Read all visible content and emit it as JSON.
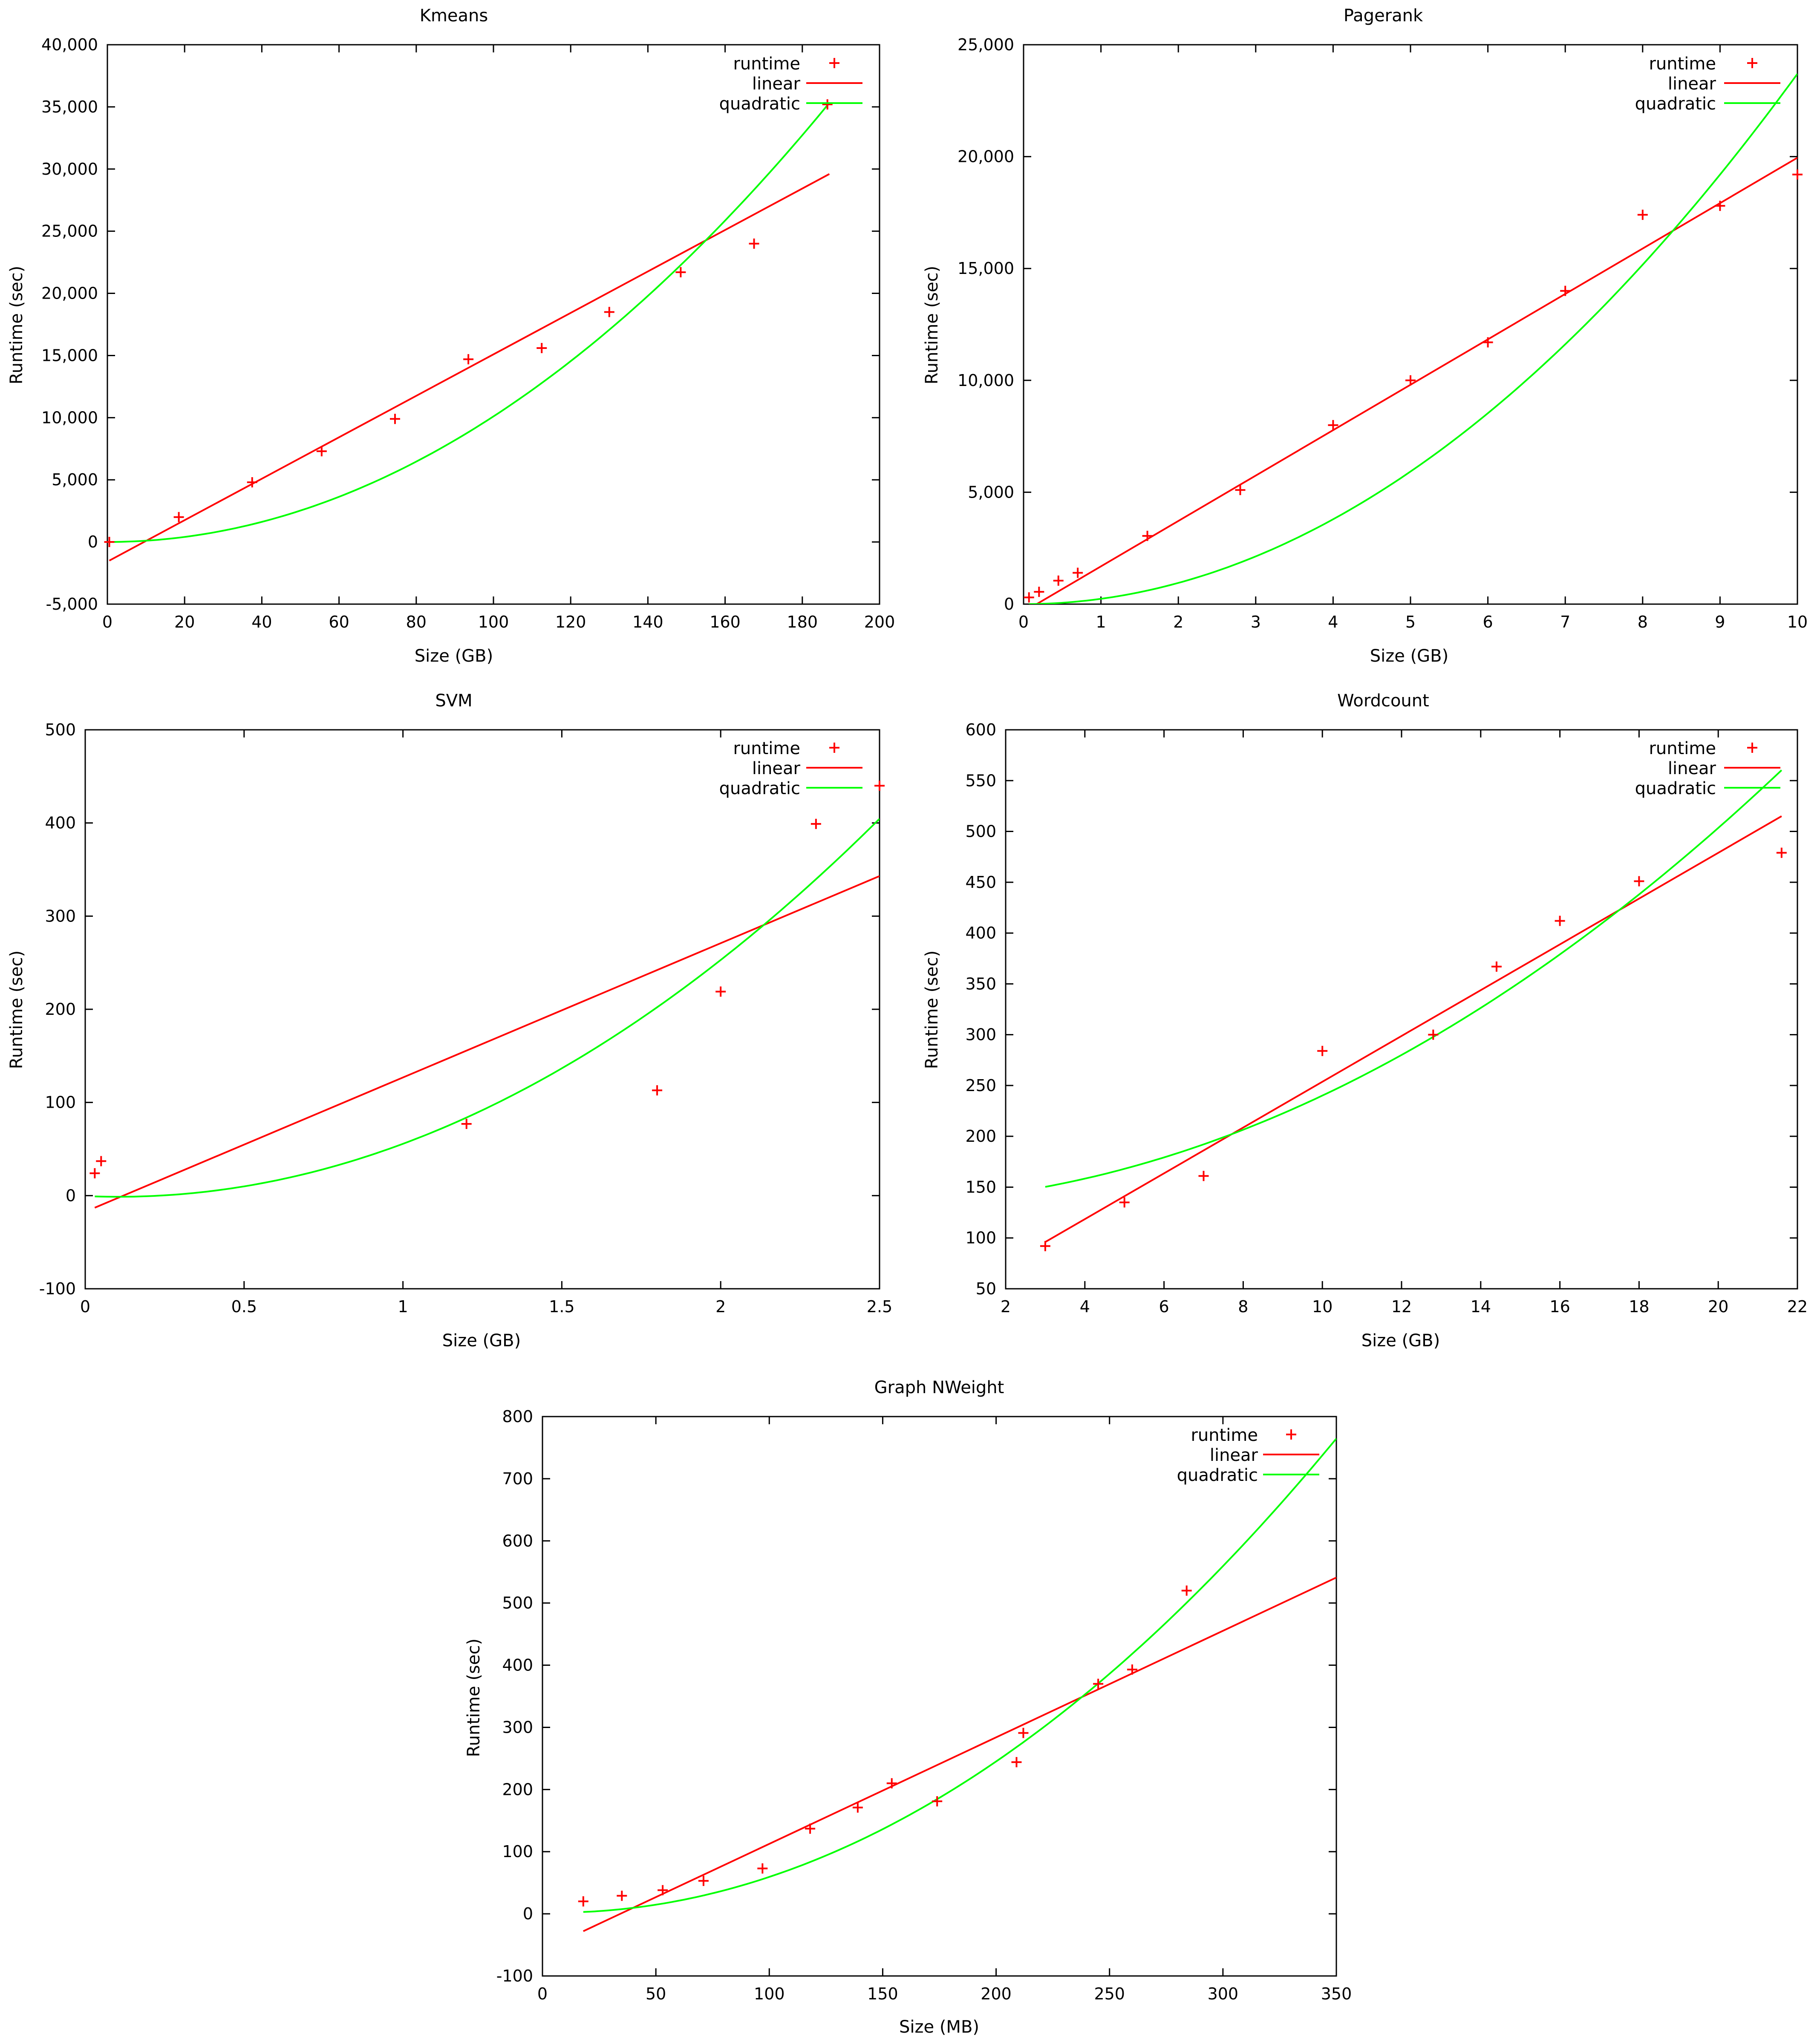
{
  "colors": {
    "runtime": "#ff0000",
    "linear": "#ff0000",
    "quadratic": "#00ff00",
    "axis": "#000000",
    "background": "#ffffff"
  },
  "legend_position": "top-right",
  "chart_data": [
    {
      "type": "scatter",
      "title": "Kmeans",
      "xlabel": "Size (GB)",
      "ylabel": "Runtime (sec)",
      "xlim": [
        0,
        200
      ],
      "ylim": [
        -5000,
        40000
      ],
      "xticks": [
        0,
        20,
        40,
        60,
        80,
        100,
        120,
        140,
        160,
        180,
        200
      ],
      "xtick_labels": [
        "0",
        "20",
        "40",
        "60",
        "80",
        "100",
        "120",
        "140",
        "160",
        "180",
        "200"
      ],
      "yticks": [
        -5000,
        0,
        5000,
        10000,
        15000,
        20000,
        25000,
        30000,
        35000,
        40000
      ],
      "ytick_labels": [
        "-5,000",
        "0",
        "5,000",
        "10,000",
        "15,000",
        "20,000",
        "25,000",
        "30,000",
        "35,000",
        "40,000"
      ],
      "legend": [
        "runtime",
        "linear",
        "quadratic"
      ],
      "series": [
        {
          "name": "runtime",
          "kind": "points",
          "x": [
            0.5,
            18.5,
            37.5,
            55.5,
            74.5,
            93.5,
            112.5,
            130,
            148.5,
            167.5,
            186.5
          ],
          "y": [
            0,
            2000,
            4800,
            7300,
            9900,
            14700,
            15600,
            18500,
            21700,
            24000,
            35200
          ]
        },
        {
          "name": "linear",
          "kind": "line",
          "x": [
            0.5,
            187
          ],
          "y": [
            -1500,
            29600
          ]
        },
        {
          "name": "quadratic",
          "kind": "curve",
          "coeffs": [
            0,
            0,
            1.01
          ],
          "x_range": [
            0.5,
            187
          ]
        }
      ]
    },
    {
      "type": "scatter",
      "title": "Pagerank",
      "xlabel": "Size (GB)",
      "ylabel": "Runtime (sec)",
      "xlim": [
        0,
        10
      ],
      "ylim": [
        0,
        25000
      ],
      "xticks": [
        0,
        1,
        2,
        3,
        4,
        5,
        6,
        7,
        8,
        9,
        10
      ],
      "xtick_labels": [
        "0",
        "1",
        "2",
        "3",
        "4",
        "5",
        "6",
        "7",
        "8",
        "9",
        "10"
      ],
      "yticks": [
        0,
        5000,
        10000,
        15000,
        20000,
        25000
      ],
      "ytick_labels": [
        "0",
        "5,000",
        "10,000",
        "15,000",
        "20,000",
        "25,000"
      ],
      "legend": [
        "runtime",
        "linear",
        "quadratic"
      ],
      "series": [
        {
          "name": "runtime",
          "kind": "points",
          "x": [
            0.07,
            0.2,
            0.45,
            0.7,
            1.6,
            2.8,
            4,
            5,
            6,
            7,
            8,
            9,
            10
          ],
          "y": [
            300,
            550,
            1050,
            1400,
            3050,
            5100,
            8000,
            10000,
            11700,
            14000,
            17400,
            17800,
            19200
          ]
        },
        {
          "name": "linear",
          "kind": "line",
          "x": [
            0.07,
            10
          ],
          "y": [
            -200,
            19950
          ]
        },
        {
          "name": "quadratic",
          "kind": "curve",
          "coeffs": [
            0,
            0,
            237
          ],
          "x_range": [
            0.07,
            10
          ]
        }
      ]
    },
    {
      "type": "scatter",
      "title": "SVM",
      "xlabel": "Size (GB)",
      "ylabel": "Runtime (sec)",
      "xlim": [
        0,
        2.5
      ],
      "ylim": [
        -100,
        500
      ],
      "xticks": [
        0,
        0.5,
        1,
        1.5,
        2,
        2.5
      ],
      "xtick_labels": [
        "0",
        "0.5",
        "1",
        "1.5",
        "2",
        "2.5"
      ],
      "yticks": [
        -100,
        0,
        100,
        200,
        300,
        400,
        500
      ],
      "ytick_labels": [
        "-100",
        "0",
        "100",
        "200",
        "300",
        "400",
        "500"
      ],
      "legend": [
        "runtime",
        "linear",
        "quadratic"
      ],
      "series": [
        {
          "name": "runtime",
          "kind": "points",
          "x": [
            0.03,
            0.05,
            1.2,
            1.8,
            2,
            2.3,
            2.5
          ],
          "y": [
            24,
            37,
            77,
            113,
            219,
            399,
            440
          ]
        },
        {
          "name": "linear",
          "kind": "line",
          "x": [
            0.03,
            2.5
          ],
          "y": [
            -13,
            343
          ]
        },
        {
          "name": "quadratic",
          "kind": "curve",
          "coeffs": [
            -0.5,
            -14.5,
            70.6
          ],
          "x_range": [
            0.03,
            2.5
          ]
        }
      ]
    },
    {
      "type": "scatter",
      "title": "Wordcount",
      "xlabel": "Size (GB)",
      "ylabel": "Runtime (sec)",
      "xlim": [
        2,
        22
      ],
      "ylim": [
        50,
        600
      ],
      "xticks": [
        2,
        4,
        6,
        8,
        10,
        12,
        14,
        16,
        18,
        20,
        22
      ],
      "xtick_labels": [
        "2",
        "4",
        "6",
        "8",
        "10",
        "12",
        "14",
        "16",
        "18",
        "20",
        "22"
      ],
      "yticks": [
        50,
        100,
        150,
        200,
        250,
        300,
        350,
        400,
        450,
        500,
        550,
        600
      ],
      "ytick_labels": [
        "50",
        "100",
        "150",
        "200",
        "250",
        "300",
        "350",
        "400",
        "450",
        "500",
        "550",
        "600"
      ],
      "legend": [
        "runtime",
        "linear",
        "quadratic"
      ],
      "series": [
        {
          "name": "runtime",
          "kind": "points",
          "x": [
            3,
            5,
            7,
            10,
            12.8,
            14.4,
            16,
            18,
            21.6
          ],
          "y": [
            92,
            135,
            161,
            284,
            300,
            367,
            412,
            451,
            479
          ]
        },
        {
          "name": "linear",
          "kind": "line",
          "x": [
            3,
            21.6
          ],
          "y": [
            96,
            515
          ]
        },
        {
          "name": "quadratic",
          "kind": "curve",
          "coeffs": [
            135.6,
            2.51,
            0.794
          ],
          "x_range": [
            3,
            21.6
          ]
        }
      ]
    },
    {
      "type": "scatter",
      "title": "Graph NWeight",
      "xlabel": "Size (MB)",
      "ylabel": "Runtime (sec)",
      "xlim": [
        0,
        350
      ],
      "ylim": [
        -100,
        800
      ],
      "xticks": [
        0,
        50,
        100,
        150,
        200,
        250,
        300,
        350
      ],
      "xtick_labels": [
        "0",
        "50",
        "100",
        "150",
        "200",
        "250",
        "300",
        "350"
      ],
      "yticks": [
        -100,
        0,
        100,
        200,
        300,
        400,
        500,
        600,
        700,
        800
      ],
      "ytick_labels": [
        "-100",
        "0",
        "100",
        "200",
        "300",
        "400",
        "500",
        "600",
        "700",
        "800"
      ],
      "legend": [
        "runtime",
        "linear",
        "quadratic"
      ],
      "series": [
        {
          "name": "runtime",
          "kind": "points",
          "x": [
            18,
            35,
            53,
            71,
            97,
            118,
            139,
            154,
            174,
            209,
            212,
            245,
            260,
            284
          ],
          "y": [
            20,
            29,
            38,
            53,
            73,
            137,
            171,
            210,
            181,
            244,
            291,
            370,
            393,
            520
          ]
        },
        {
          "name": "linear",
          "kind": "line",
          "x": [
            18,
            350
          ],
          "y": [
            -28,
            541
          ]
        },
        {
          "name": "quadratic",
          "kind": "curve",
          "coeffs": [
            2.1,
            -0.07,
            0.006425
          ],
          "x_range": [
            18,
            350
          ]
        }
      ]
    }
  ]
}
